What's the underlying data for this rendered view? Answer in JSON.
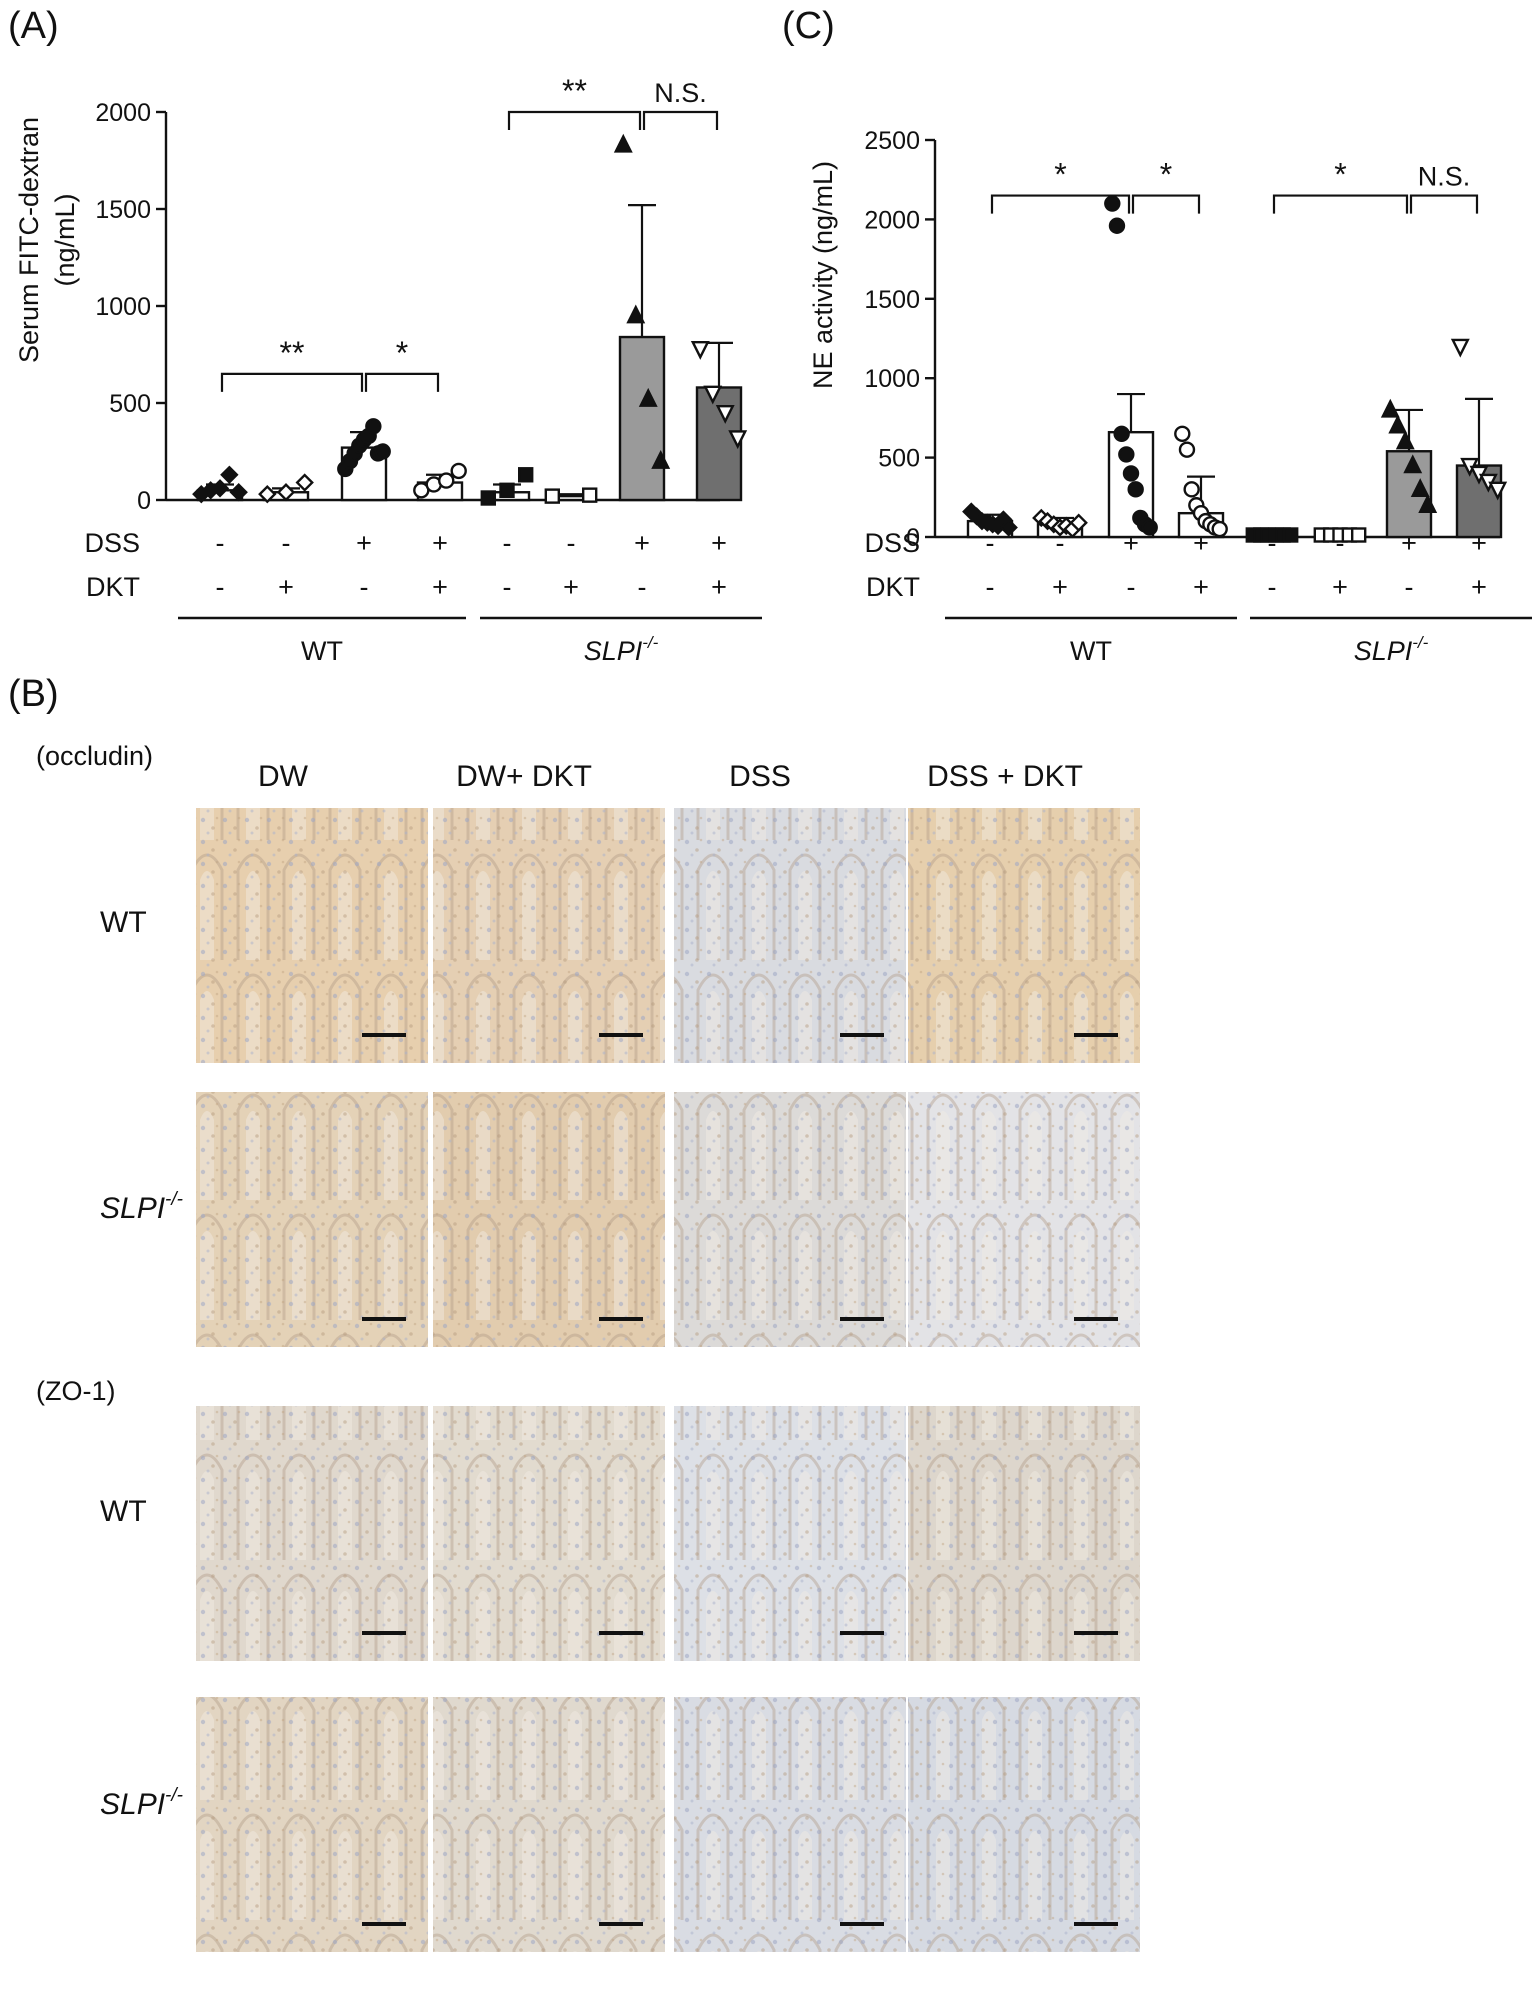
{
  "panels": {
    "A": {
      "label": "(A)",
      "chart_data": {
        "type": "bar",
        "ylabel_line1": "Serum FITC-dextran",
        "ylabel_line2": "(ng/mL)",
        "ylim": [
          0,
          2000
        ],
        "yticks": [
          0,
          500,
          1000,
          1500,
          2000
        ],
        "row_labels": [
          "DSS",
          "DKT"
        ],
        "dss": [
          "-",
          "-",
          "+",
          "+",
          "-",
          "-",
          "+",
          "+"
        ],
        "dkt": [
          "-",
          "+",
          "-",
          "+",
          "-",
          "+",
          "-",
          "+"
        ],
        "groups": [
          {
            "label": "WT",
            "italic": false,
            "sup": ""
          },
          {
            "label": "SLPI",
            "italic": true,
            "sup": "-/-"
          }
        ],
        "bars": [
          {
            "mean": 50,
            "sd": 30,
            "fill": "#ffffff",
            "marker": "diamond",
            "points": [
              30,
              50,
              60,
              130,
              40
            ]
          },
          {
            "mean": 40,
            "sd": 20,
            "fill": "#ffffff",
            "marker": "diamond-open",
            "points": [
              30,
              40,
              90
            ]
          },
          {
            "mean": 270,
            "sd": 80,
            "fill": "#ffffff",
            "marker": "circle",
            "points": [
              160,
              200,
              240,
              280,
              310,
              330,
              380,
              240,
              250
            ]
          },
          {
            "mean": 90,
            "sd": 40,
            "fill": "#ffffff",
            "marker": "circle-open",
            "points": [
              50,
              80,
              100,
              150
            ]
          },
          {
            "mean": 40,
            "sd": 40,
            "fill": "#ffffff",
            "marker": "square",
            "points": [
              10,
              50,
              130
            ]
          },
          {
            "mean": 20,
            "sd": 10,
            "fill": "#ffffff",
            "marker": "square-open",
            "points": [
              20,
              25
            ]
          },
          {
            "mean": 840,
            "sd": 680,
            "fill": "#9a9a9a",
            "marker": "triangle",
            "points": [
              1830,
              950,
              520,
              200
            ]
          },
          {
            "mean": 580,
            "sd": 230,
            "fill": "#6f6f6f",
            "marker": "triangle-down-open",
            "points": [
              780,
              550,
              450,
              320
            ]
          }
        ],
        "brackets": [
          {
            "from": 0,
            "to": 2,
            "level": 650,
            "text": "**"
          },
          {
            "from": 2,
            "to": 3,
            "level": 650,
            "text": "*"
          },
          {
            "from": 4,
            "to": 6,
            "level": 2000,
            "text": "**"
          },
          {
            "from": 6,
            "to": 7,
            "level": 2000,
            "text": "N.S."
          }
        ]
      }
    },
    "C": {
      "label": "(C)",
      "chart_data": {
        "type": "bar",
        "ylabel": "NE activity (ng/mL)",
        "ylim": [
          0,
          2500
        ],
        "yticks": [
          0,
          500,
          1000,
          1500,
          2000,
          2500
        ],
        "row_labels": [
          "DSS",
          "DKT"
        ],
        "dss": [
          "-",
          "-",
          "+",
          "+",
          "-",
          "-",
          "+",
          "+"
        ],
        "dkt": [
          "-",
          "+",
          "-",
          "+",
          "-",
          "+",
          "-",
          "+"
        ],
        "groups": [
          {
            "label": "WT",
            "italic": false,
            "sup": ""
          },
          {
            "label": "SLPI",
            "italic": true,
            "sup": "-/-"
          }
        ],
        "bars": [
          {
            "mean": 100,
            "sd": 40,
            "fill": "#ffffff",
            "marker": "diamond",
            "points": [
              160,
              130,
              100,
              90,
              80,
              70,
              110,
              60
            ]
          },
          {
            "mean": 80,
            "sd": 40,
            "fill": "#ffffff",
            "marker": "diamond-open",
            "points": [
              120,
              100,
              80,
              60,
              70,
              50,
              90
            ]
          },
          {
            "mean": 660,
            "sd": 240,
            "fill": "#ffffff",
            "marker": "circle",
            "points": [
              2100,
              1960,
              650,
              520,
              400,
              300,
              120,
              80,
              60
            ]
          },
          {
            "mean": 150,
            "sd": 230,
            "fill": "#ffffff",
            "marker": "circle-open",
            "points": [
              650,
              550,
              300,
              200,
              150,
              100,
              80,
              60,
              50
            ]
          },
          {
            "mean": 10,
            "sd": 10,
            "fill": "#ffffff",
            "marker": "square",
            "points": [
              10,
              10,
              10,
              10,
              10,
              10
            ]
          },
          {
            "mean": 10,
            "sd": 5,
            "fill": "#ffffff",
            "marker": "square-open",
            "points": [
              10,
              10,
              10,
              10,
              10
            ]
          },
          {
            "mean": 540,
            "sd": 260,
            "fill": "#9a9a9a",
            "marker": "triangle",
            "points": [
              800,
              700,
              600,
              450,
              300,
              200
            ]
          },
          {
            "mean": 450,
            "sd": 420,
            "fill": "#6f6f6f",
            "marker": "triangle-down-open",
            "points": [
              1200,
              450,
              400,
              350,
              300
            ]
          }
        ],
        "brackets": [
          {
            "from": 0,
            "to": 2,
            "level": 2150,
            "text": "*"
          },
          {
            "from": 2,
            "to": 3,
            "level": 2150,
            "text": "*"
          },
          {
            "from": 4,
            "to": 6,
            "level": 2150,
            "text": "*"
          },
          {
            "from": 6,
            "to": 7,
            "level": 2150,
            "text": "N.S."
          }
        ]
      }
    },
    "B": {
      "label": "(B)",
      "columns": [
        "DW",
        "DW+ DKT",
        "DSS",
        "DSS + DKT"
      ],
      "sections": [
        {
          "stain": "(occludin)",
          "rows": [
            {
              "label": "WT",
              "italic": false,
              "sup": ""
            },
            {
              "label": "SLPI",
              "italic": true,
              "sup": "-/-"
            }
          ]
        },
        {
          "stain": "(ZO-1)",
          "rows": [
            {
              "label": "WT",
              "italic": false,
              "sup": ""
            },
            {
              "label": "SLPI",
              "italic": true,
              "sup": "-/-"
            }
          ]
        }
      ],
      "tile_tones": [
        [
          "#e7cfae",
          "#e5cfb3",
          "#d9dbe0",
          "#e6cfad"
        ],
        [
          "#e4d2b7",
          "#e2ccae",
          "#dcdad8",
          "#e3e3e6"
        ],
        [
          "#e0d8cd",
          "#e2dbcf",
          "#dde0e6",
          "#ddd6cc"
        ],
        [
          "#e2d5c2",
          "#e0d9ce",
          "#d9dce3",
          "#d6dae2"
        ]
      ]
    }
  }
}
